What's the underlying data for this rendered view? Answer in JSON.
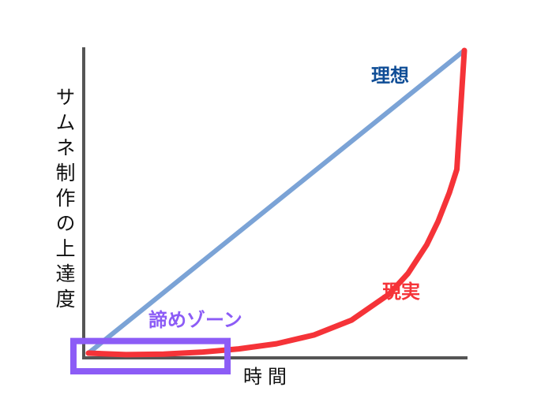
{
  "chart_data": {
    "type": "line",
    "title": "",
    "xlabel": "時間",
    "ylabel": "サムネ制作の上達度",
    "xlim": [
      0,
      1
    ],
    "ylim": [
      0,
      1
    ],
    "grid": false,
    "series": [
      {
        "name": "理想",
        "color": "#7ba3d6",
        "label_color": "#0f4d96",
        "x": [
          0,
          1
        ],
        "y": [
          0,
          1
        ]
      },
      {
        "name": "現実",
        "color": "#f53338",
        "label_color": "#f53338",
        "x": [
          0,
          0.1,
          0.2,
          0.3,
          0.4,
          0.5,
          0.6,
          0.7,
          0.8,
          0.85,
          0.9,
          0.93,
          0.96,
          0.98,
          1
        ],
        "y": [
          0,
          -0.005,
          -0.003,
          0.003,
          0.014,
          0.031,
          0.06,
          0.109,
          0.195,
          0.263,
          0.358,
          0.435,
          0.53,
          0.607,
          1
        ]
      }
    ],
    "annotations": [
      {
        "text": "諦めゾーン",
        "color": "#8c5cf6",
        "x_range": [
          -0.04,
          0.37
        ],
        "y_range": [
          -0.06,
          0.04
        ]
      }
    ]
  }
}
